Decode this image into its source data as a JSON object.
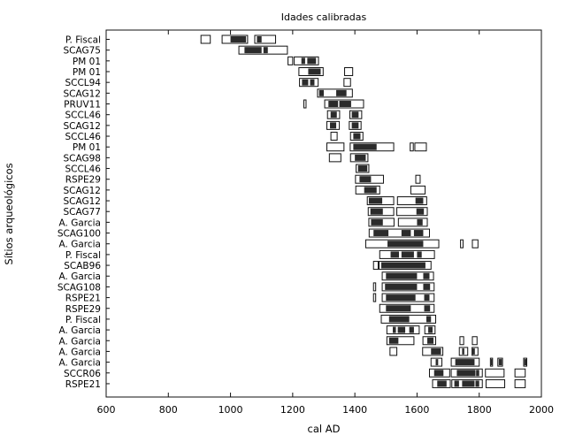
{
  "chart_data": {
    "type": "range-plot",
    "title": "Idades calibradas",
    "xlabel": "cal AD",
    "ylabel": "Sítios arqueológicos",
    "xlim": [
      600,
      2000
    ],
    "xticks": [
      600,
      800,
      1000,
      1200,
      1400,
      1600,
      1800,
      2000
    ],
    "grid": false,
    "legend": "none",
    "sites": [
      {
        "label": "P. Fiscal",
        "r68": [
          [
            1000,
            1050
          ],
          [
            1085,
            1100
          ]
        ],
        "r95": [
          [
            905,
            935
          ],
          [
            973,
            1055
          ],
          [
            1078,
            1145
          ]
        ]
      },
      {
        "label": "SCAG75",
        "r68": [
          [
            1045,
            1100
          ],
          [
            1106,
            1120
          ]
        ],
        "r95": [
          [
            1027,
            1183
          ]
        ]
      },
      {
        "label": "PM 01",
        "r68": [
          [
            1228,
            1240
          ],
          [
            1247,
            1275
          ]
        ],
        "r95": [
          [
            1185,
            1200
          ],
          [
            1205,
            1283
          ]
        ]
      },
      {
        "label": "PM 01",
        "r68": [
          [
            1250,
            1290
          ]
        ],
        "r95": [
          [
            1220,
            1298
          ],
          [
            1367,
            1393
          ]
        ]
      },
      {
        "label": "SCCL94",
        "r68": [
          [
            1230,
            1250
          ],
          [
            1256,
            1270
          ]
        ],
        "r95": [
          [
            1222,
            1282
          ],
          [
            1365,
            1386
          ]
        ]
      },
      {
        "label": "SCAG12",
        "r68": [
          [
            1285,
            1300
          ],
          [
            1340,
            1373
          ]
        ],
        "r95": [
          [
            1280,
            1392
          ]
        ]
      },
      {
        "label": "PRUV11",
        "r68": [
          [
            1315,
            1346
          ],
          [
            1350,
            1388
          ]
        ],
        "r95": [
          [
            1236,
            1243
          ],
          [
            1303,
            1428
          ]
        ]
      },
      {
        "label": "SCCL46",
        "r68": [
          [
            1322,
            1342
          ],
          [
            1390,
            1412
          ]
        ],
        "r95": [
          [
            1312,
            1351
          ],
          [
            1384,
            1422
          ]
        ]
      },
      {
        "label": "SCAG12",
        "r68": [
          [
            1320,
            1340
          ],
          [
            1390,
            1412
          ]
        ],
        "r95": [
          [
            1310,
            1350
          ],
          [
            1382,
            1420
          ]
        ]
      },
      {
        "label": "SCCL46",
        "r68": [
          [
            1395,
            1418
          ]
        ],
        "r95": [
          [
            1323,
            1343
          ],
          [
            1386,
            1426
          ]
        ]
      },
      {
        "label": "PM 01",
        "r68": [
          [
            1395,
            1470
          ]
        ],
        "r95": [
          [
            1310,
            1365
          ],
          [
            1385,
            1525
          ],
          [
            1578,
            1588
          ],
          [
            1593,
            1630
          ]
        ]
      },
      {
        "label": "SCAG98",
        "r68": [
          [
            1400,
            1435
          ]
        ],
        "r95": [
          [
            1318,
            1355
          ],
          [
            1386,
            1442
          ]
        ]
      },
      {
        "label": "SCCL46",
        "r68": [
          [
            1410,
            1440
          ]
        ],
        "r95": [
          [
            1404,
            1445
          ]
        ]
      },
      {
        "label": "RSPE29",
        "r68": [
          [
            1415,
            1452
          ]
        ],
        "r95": [
          [
            1402,
            1492
          ],
          [
            1596,
            1610
          ]
        ]
      },
      {
        "label": "SCAG12",
        "r68": [
          [
            1430,
            1470
          ]
        ],
        "r95": [
          [
            1403,
            1480
          ],
          [
            1580,
            1626
          ]
        ]
      },
      {
        "label": "SCAG12",
        "r68": [
          [
            1445,
            1488
          ],
          [
            1595,
            1620
          ]
        ],
        "r95": [
          [
            1440,
            1525
          ],
          [
            1537,
            1631
          ]
        ]
      },
      {
        "label": "SCAG77",
        "r68": [
          [
            1450,
            1490
          ],
          [
            1598,
            1622
          ]
        ],
        "r95": [
          [
            1443,
            1525
          ],
          [
            1535,
            1633
          ]
        ]
      },
      {
        "label": "A. Garcia",
        "r68": [
          [
            1452,
            1490
          ],
          [
            1600,
            1618
          ]
        ],
        "r95": [
          [
            1445,
            1526
          ],
          [
            1540,
            1633
          ]
        ]
      },
      {
        "label": "SCAG100",
        "r68": [
          [
            1460,
            1508
          ],
          [
            1550,
            1580
          ],
          [
            1590,
            1620
          ]
        ],
        "r95": [
          [
            1446,
            1640
          ]
        ]
      },
      {
        "label": "A. Garcia",
        "r68": [
          [
            1505,
            1620
          ]
        ],
        "r95": [
          [
            1435,
            1670
          ],
          [
            1740,
            1748
          ],
          [
            1778,
            1796
          ]
        ]
      },
      {
        "label": "P. Fiscal",
        "r68": [
          [
            1515,
            1542
          ],
          [
            1550,
            1590
          ],
          [
            1600,
            1615
          ]
        ],
        "r95": [
          [
            1480,
            1656
          ]
        ]
      },
      {
        "label": "SCAB96",
        "r68": [
          [
            1485,
            1627
          ]
        ],
        "r95": [
          [
            1460,
            1475
          ],
          [
            1478,
            1645
          ]
        ]
      },
      {
        "label": "A. Garcia",
        "r68": [
          [
            1500,
            1600
          ],
          [
            1620,
            1640
          ]
        ],
        "r95": [
          [
            1488,
            1653
          ]
        ]
      },
      {
        "label": "SCAG108",
        "r68": [
          [
            1497,
            1600
          ],
          [
            1620,
            1642
          ]
        ],
        "r95": [
          [
            1460,
            1467
          ],
          [
            1488,
            1655
          ]
        ]
      },
      {
        "label": "RSPE21",
        "r68": [
          [
            1500,
            1595
          ],
          [
            1623,
            1640
          ]
        ],
        "r95": [
          [
            1460,
            1467
          ],
          [
            1488,
            1655
          ]
        ]
      },
      {
        "label": "RSPE29",
        "r68": [
          [
            1500,
            1580
          ],
          [
            1623,
            1642
          ]
        ],
        "r95": [
          [
            1480,
            1655
          ]
        ]
      },
      {
        "label": "P. Fiscal",
        "r68": [
          [
            1510,
            1575
          ],
          [
            1630,
            1645
          ]
        ],
        "r95": [
          [
            1485,
            1660
          ]
        ]
      },
      {
        "label": "A. Garcia",
        "r68": [
          [
            1522,
            1532
          ],
          [
            1538,
            1562
          ],
          [
            1575,
            1590
          ],
          [
            1636,
            1650
          ]
        ],
        "r95": [
          [
            1503,
            1607
          ],
          [
            1625,
            1658
          ]
        ]
      },
      {
        "label": "A. Garcia",
        "r68": [
          [
            1510,
            1540
          ],
          [
            1633,
            1653
          ]
        ],
        "r95": [
          [
            1503,
            1590
          ],
          [
            1619,
            1660
          ],
          [
            1738,
            1750
          ],
          [
            1778,
            1793
          ]
        ]
      },
      {
        "label": "A. Garcia",
        "r68": [
          [
            1645,
            1677
          ],
          [
            1745,
            1752
          ],
          [
            1778,
            1786
          ]
        ],
        "r95": [
          [
            1513,
            1535
          ],
          [
            1618,
            1683
          ],
          [
            1736,
            1763
          ],
          [
            1777,
            1796
          ]
        ]
      },
      {
        "label": "A. Garcia",
        "r68": [
          [
            1660,
            1668
          ],
          [
            1723,
            1785
          ],
          [
            1835,
            1843
          ],
          [
            1863,
            1873
          ],
          [
            1945,
            1952
          ]
        ],
        "r95": [
          [
            1645,
            1680
          ],
          [
            1710,
            1800
          ],
          [
            1836,
            1843
          ],
          [
            1860,
            1875
          ],
          [
            1943,
            1953
          ]
        ]
      },
      {
        "label": "SCCR06",
        "r68": [
          [
            1655,
            1685
          ],
          [
            1728,
            1788
          ],
          [
            1790,
            1800
          ]
        ],
        "r95": [
          [
            1640,
            1705
          ],
          [
            1710,
            1810
          ],
          [
            1820,
            1880
          ],
          [
            1915,
            1948
          ]
        ]
      },
      {
        "label": "RSPE21",
        "r68": [
          [
            1665,
            1695
          ],
          [
            1720,
            1735
          ],
          [
            1745,
            1785
          ],
          [
            1788,
            1800
          ]
        ],
        "r95": [
          [
            1650,
            1707
          ],
          [
            1712,
            1810
          ],
          [
            1822,
            1882
          ],
          [
            1915,
            1948
          ]
        ]
      }
    ]
  }
}
